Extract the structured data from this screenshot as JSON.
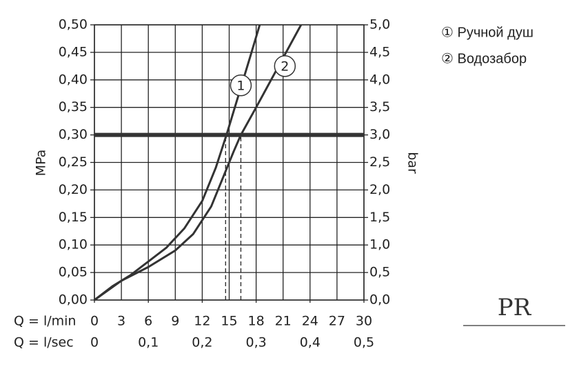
{
  "chart_data": {
    "type": "line",
    "ylabel": "MPa",
    "y2label": "bar",
    "xlabel": "Q = l/min",
    "x2label": "Q = l/sec",
    "xlim": [
      0,
      30
    ],
    "xticks": [
      0,
      3,
      6,
      9,
      12,
      15,
      18,
      21,
      24,
      27,
      30
    ],
    "x2lim": [
      0,
      0.5
    ],
    "x2ticks": [
      0,
      {
        "value": 0.1,
        "label": "0,1"
      },
      {
        "value": 0.2,
        "label": "0,2"
      },
      {
        "value": 0.3,
        "label": "0,3"
      },
      {
        "value": 0.4,
        "label": "0,4"
      },
      {
        "value": 0.5,
        "label": "0,5"
      }
    ],
    "ylim": [
      0,
      0.5
    ],
    "yticks": [
      {
        "value": 0,
        "label": "0,00"
      },
      {
        "value": 0.05,
        "label": "0,05"
      },
      {
        "value": 0.1,
        "label": "0,10"
      },
      {
        "value": 0.15,
        "label": "0,15"
      },
      {
        "value": 0.2,
        "label": "0,20"
      },
      {
        "value": 0.25,
        "label": "0,25"
      },
      {
        "value": 0.3,
        "label": "0,30"
      },
      {
        "value": 0.35,
        "label": "0,35"
      },
      {
        "value": 0.4,
        "label": "0,40"
      },
      {
        "value": 0.45,
        "label": "0,45"
      },
      {
        "value": 0.5,
        "label": "0,50"
      }
    ],
    "y2lim": [
      0,
      5
    ],
    "y2ticks": [
      {
        "value": 0,
        "label": "0,0"
      },
      {
        "value": 0.5,
        "label": "0,5"
      },
      {
        "value": 1,
        "label": "1,0"
      },
      {
        "value": 1.5,
        "label": "1,5"
      },
      {
        "value": 2,
        "label": "2,0"
      },
      {
        "value": 2.5,
        "label": "2,5"
      },
      {
        "value": 3,
        "label": "3,0"
      },
      {
        "value": 3.5,
        "label": "3,5"
      },
      {
        "value": 4,
        "label": "4,0"
      },
      {
        "value": 4.5,
        "label": "4,5"
      },
      {
        "value": 5,
        "label": "5,0"
      }
    ],
    "grid": true,
    "series": [
      {
        "name": "① Ручной душ",
        "color": "#333333",
        "x": [
          0,
          2,
          4,
          6,
          8,
          10,
          12,
          13.5,
          14.7,
          16,
          17.3,
          18.4
        ],
        "values": [
          0,
          0.025,
          0.045,
          0.07,
          0.095,
          0.13,
          0.18,
          0.24,
          0.3,
          0.37,
          0.44,
          0.5
        ]
      },
      {
        "name": "② Водозабор",
        "color": "#333333",
        "x": [
          0,
          3,
          6,
          9,
          11,
          13,
          14.5,
          15.5,
          16.3,
          18,
          20,
          23
        ],
        "values": [
          0,
          0.035,
          0.06,
          0.09,
          0.12,
          0.17,
          0.23,
          0.27,
          0.3,
          0.35,
          0.41,
          0.5
        ]
      }
    ],
    "hline": 0.3,
    "vlines": [
      14.6,
      16.3
    ],
    "annotations": [
      {
        "text": "1",
        "x": 16.3,
        "y": 0.39
      },
      {
        "text": "2",
        "x": 21.2,
        "y": 0.425
      }
    ]
  },
  "logo": "PR"
}
